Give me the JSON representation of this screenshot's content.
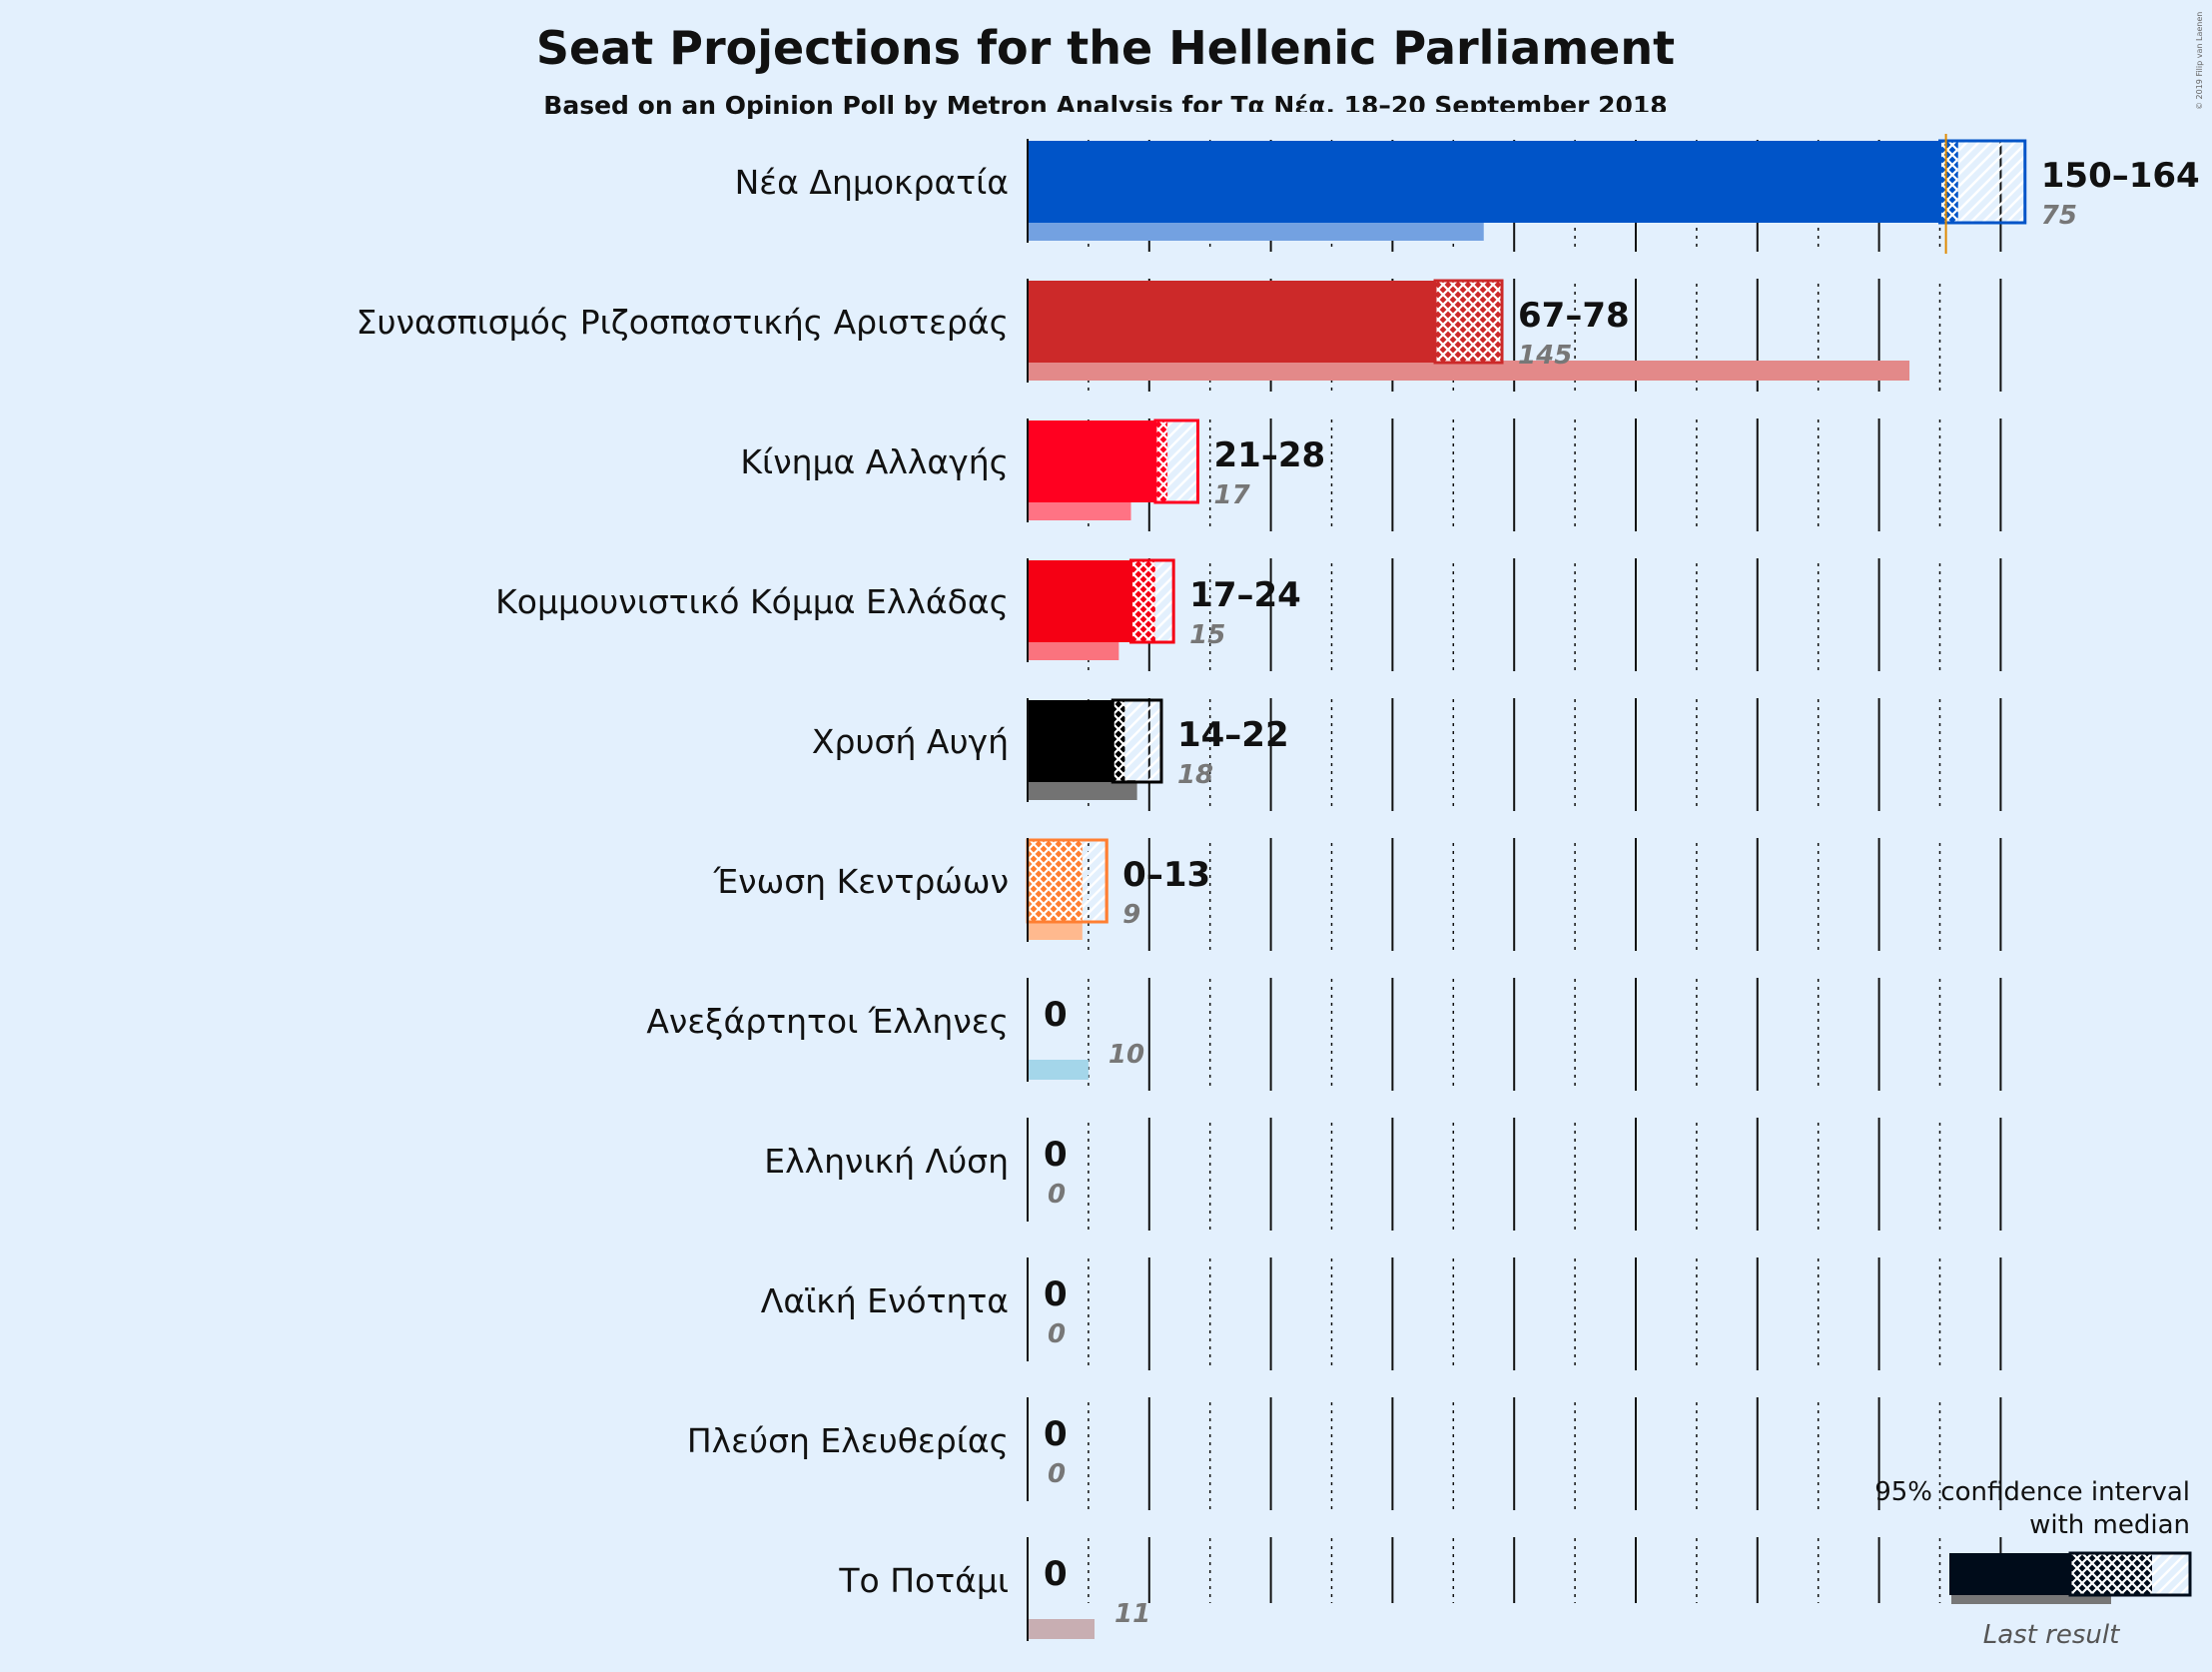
{
  "chart_data": {
    "type": "bar",
    "title": "Seat Projections for the Hellenic Parliament",
    "subtitle": "Based on an Opinion Poll by Metron Analysis for Τα Νέα, 18–20 September 2018",
    "copyright": "© 2019 Filip van Laenen",
    "majority_line": 151,
    "series": [
      {
        "party": "Νέα Δημοκρατία",
        "color": "#0054c8",
        "low": 150,
        "median": 153,
        "high": 164,
        "range_label": "150–164",
        "last": 75,
        "last_label": "75"
      },
      {
        "party": "Συνασπισμός Ριζοσπαστικής Αριστεράς",
        "color": "#cc2929",
        "low": 67,
        "median": 78,
        "high": 78,
        "range_label": "67–78",
        "last": 145,
        "last_label": "145"
      },
      {
        "party": "Κίνημα Αλλαγής",
        "color": "#ff0020",
        "low": 21,
        "median": 23,
        "high": 28,
        "range_label": "21–28",
        "last": 17,
        "last_label": "17"
      },
      {
        "party": "Κομμουνιστικό Κόμμα Ελλάδας",
        "color": "#f50014",
        "low": 17,
        "median": 21,
        "high": 24,
        "range_label": "17–24",
        "last": 15,
        "last_label": "15"
      },
      {
        "party": "Χρυσή Αυγή",
        "color": "#000000",
        "low": 14,
        "median": 16,
        "high": 22,
        "range_label": "14–22",
        "last": 18,
        "last_label": "18"
      },
      {
        "party": "Ένωση Κεντρώων",
        "color": "#ff7f32",
        "low": 0,
        "median": 9,
        "high": 13,
        "range_label": "0–13",
        "last": 9,
        "last_label": "9"
      },
      {
        "party": "Ανεξάρτητοι Έλληνες",
        "color": "#5ab4d9",
        "low": 0,
        "median": 0,
        "high": 0,
        "range_label": "0",
        "last": 10,
        "last_label": "10"
      },
      {
        "party": "Ελληνική Λύση",
        "color": "#444444",
        "low": 0,
        "median": 0,
        "high": 0,
        "range_label": "0",
        "last": 0,
        "last_label": "0"
      },
      {
        "party": "Λαϊκή Ενότητα",
        "color": "#c00000",
        "low": 0,
        "median": 0,
        "high": 0,
        "range_label": "0",
        "last": 0,
        "last_label": "0"
      },
      {
        "party": "Πλεύση Ελευθερίας",
        "color": "#6b2c8a",
        "low": 0,
        "median": 0,
        "high": 0,
        "range_label": "0",
        "last": 0,
        "last_label": "0"
      },
      {
        "party": "Το Ποτάμι",
        "color": "#9b6b73",
        "low": 0,
        "median": 0,
        "high": 0,
        "range_label": "0",
        "last": 11,
        "last_label": "11"
      }
    ],
    "legend": {
      "line1": "95% confidence interval",
      "line2": "with median",
      "last_label": "Last result",
      "position": "bottom-right"
    }
  }
}
